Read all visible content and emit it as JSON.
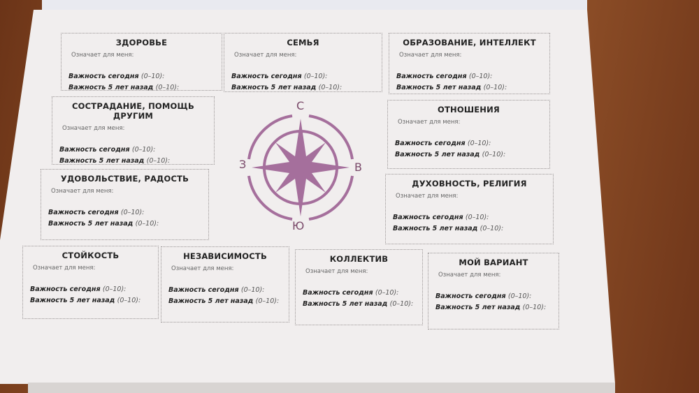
{
  "compass": {
    "north": "С",
    "south": "Ю",
    "east": "В",
    "west": "З",
    "color": "#a56f9c"
  },
  "boxes": [
    {
      "title": "ЗДОРОВЬЕ",
      "means": "Означает для меня:",
      "today": "Важность сегодня",
      "past": "Важность 5 лет назад",
      "range": "(0–10):"
    },
    {
      "title": "СЕМЬЯ",
      "means": "Означает для меня:",
      "today": "Важность сегодня",
      "past": "Важность 5 лет назад",
      "range": "(0–10):"
    },
    {
      "title": "ОБРАЗОВАНИЕ, ИНТЕЛЛЕКТ",
      "means": "Означает для меня:",
      "today": "Важность сегодня",
      "past": "Важность 5 лет назад",
      "range": "(0–10):"
    },
    {
      "title": "СОСТРАДАНИЕ, ПОМОЩЬ ДРУГИМ",
      "means": "Означает для меня:",
      "today": "Важность сегодня",
      "past": "Важность 5 лет назад",
      "range": "(0–10):"
    },
    {
      "title": "ОТНОШЕНИЯ",
      "means": "Означает для меня:",
      "today": "Важность сегодня",
      "past": "Важность 5 лет назад",
      "range": "(0–10):"
    },
    {
      "title": "УДОВОЛЬСТВИЕ, РАДОСТЬ",
      "means": "Означает для меня:",
      "today": "Важность сегодня",
      "past": "Важность 5 лет назад",
      "range": "(0–10):"
    },
    {
      "title": "ДУХОВНОСТЬ, РЕЛИГИЯ",
      "means": "Означает для меня:",
      "today": "Важность сегодня",
      "past": "Важность 5 лет назад",
      "range": "(0–10):"
    },
    {
      "title": "СТОЙКОСТЬ",
      "means": "Означает для меня:",
      "today": "Важность сегодня",
      "past": "Важность 5 лет назад",
      "range": "(0–10):"
    },
    {
      "title": "НЕЗАВИСИМОСТЬ",
      "means": "Означает для меня:",
      "today": "Важность сегодня",
      "past": "Важность 5 лет назад",
      "range": "(0–10):"
    },
    {
      "title": "КОЛЛЕКТИВ",
      "means": "Означает для меня:",
      "today": "Важность сегодня",
      "past": "Важность 5 лет назад",
      "range": "(0–10):"
    },
    {
      "title": "МОЙ ВАРИАНТ",
      "means": "Означает для меня:",
      "today": "Важность сегодня",
      "past": "Важность 5 лет назад",
      "range": "(0–10):"
    }
  ]
}
